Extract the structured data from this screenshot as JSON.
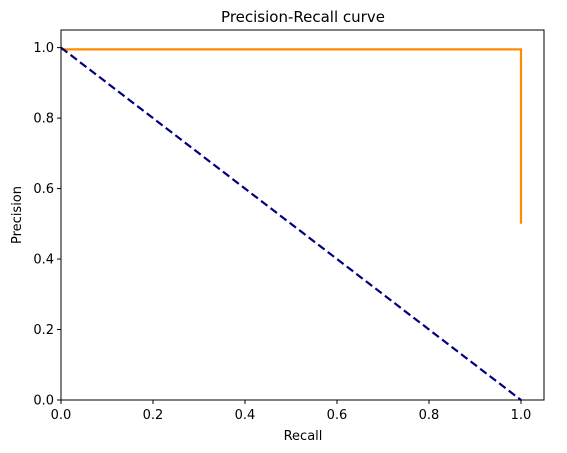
{
  "chart_data": {
    "type": "line",
    "title": "Precision-Recall curve",
    "xlabel": "Recall",
    "ylabel": "Precision",
    "xlim": [
      0.0,
      1.05
    ],
    "ylim": [
      0.0,
      1.05
    ],
    "xticks": [
      0.0,
      0.2,
      0.4,
      0.6,
      0.8,
      1.0
    ],
    "yticks": [
      0.0,
      0.2,
      0.4,
      0.6,
      0.8,
      1.0
    ],
    "xtick_labels": [
      "0.0",
      "0.2",
      "0.4",
      "0.6",
      "0.8",
      "1.0"
    ],
    "ytick_labels": [
      "0.0",
      "0.2",
      "0.4",
      "0.6",
      "0.8",
      "1.0"
    ],
    "grid": false,
    "series": [
      {
        "x": [
          0.0,
          1.0,
          1.0
        ],
        "y": [
          0.995,
          0.995,
          0.5
        ],
        "color": "#ff8c00",
        "style": "solid"
      },
      {
        "x": [
          0.0,
          1.0
        ],
        "y": [
          1.0,
          0.0
        ],
        "color": "#000080",
        "style": "dashed"
      }
    ]
  }
}
